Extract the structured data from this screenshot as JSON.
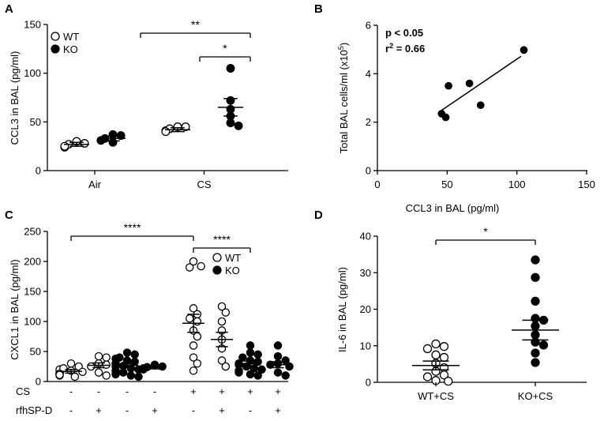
{
  "chart_data": [
    {
      "panel": "A",
      "type": "scatter",
      "ylabel": "CCL3 in BAL (pg/ml)",
      "ylim": [
        0,
        150
      ],
      "yticks": [
        "0",
        "50",
        "100",
        "150"
      ],
      "categories": [
        "Air",
        "CS"
      ],
      "legend": {
        "position": "top-left",
        "items": [
          {
            "name": "WT",
            "style": "open"
          },
          {
            "name": "KO",
            "style": "filled"
          }
        ]
      },
      "groups": [
        {
          "category": "Air",
          "genotype": "WT",
          "style": "open",
          "mean": 27,
          "sem": 2,
          "values": [
            24,
            27,
            28,
            30,
            25
          ]
        },
        {
          "category": "Air",
          "genotype": "KO",
          "style": "filled",
          "mean": 33,
          "sem": 2.5,
          "values": [
            31,
            37,
            36,
            29,
            33
          ]
        },
        {
          "category": "CS",
          "genotype": "WT",
          "style": "open",
          "mean": 42,
          "sem": 2,
          "values": [
            41,
            45,
            45,
            43,
            40
          ]
        },
        {
          "category": "CS",
          "genotype": "KO",
          "style": "filled",
          "mean": 65,
          "sem": 9,
          "values": [
            105,
            72,
            63,
            56,
            46,
            49
          ]
        }
      ],
      "significance": [
        {
          "label": "**",
          "from": 1,
          "to": 3
        },
        {
          "label": "*",
          "from": 2,
          "to": 3
        }
      ]
    },
    {
      "panel": "B",
      "type": "scatter",
      "xlabel": "CCL3 in BAL (pg/ml)",
      "ylabel_main": "Total BAL cells/ml (x10",
      "ylabel_sup": "5",
      "ylabel_end": ")",
      "xlim": [
        0,
        150
      ],
      "ylim": [
        0,
        6
      ],
      "xticks": [
        "0",
        "50",
        "100",
        "150"
      ],
      "yticks": [
        "0",
        "2",
        "4",
        "6"
      ],
      "points": [
        [
          46,
          2.35
        ],
        [
          49,
          2.2
        ],
        [
          51,
          3.5
        ],
        [
          66,
          3.6
        ],
        [
          74,
          2.7
        ],
        [
          105,
          4.98
        ]
      ],
      "fit": {
        "x1": 45,
        "y1": 2.45,
        "x2": 103,
        "y2": 4.72
      },
      "stat_p": "p < 0.05",
      "stat_r_base": "r",
      "stat_r_sup": "2",
      "stat_r_rest": " = 0.66"
    },
    {
      "panel": "C",
      "type": "scatter",
      "ylabel": "CXCL1 in BAL (pg/ml)",
      "ylim": [
        0,
        250
      ],
      "yticks": [
        "0",
        "50",
        "100",
        "150",
        "200",
        "250"
      ],
      "legend": {
        "position": "top-right",
        "items": [
          {
            "name": "WT",
            "style": "open"
          },
          {
            "name": "KO",
            "style": "filled"
          }
        ]
      },
      "row_labels": [
        "CS",
        "rfhSP-D"
      ],
      "cs_row": [
        "-",
        "-",
        "-",
        "-",
        "+",
        "+",
        "+",
        "+"
      ],
      "sp_row": [
        "-",
        "+",
        "-",
        "+",
        "-",
        "+",
        "-",
        "+"
      ],
      "groups": [
        {
          "style": "open",
          "mean": 17,
          "sem": 3,
          "values": [
            10,
            12,
            14,
            15,
            18,
            20,
            22,
            25,
            30,
            13,
            16,
            8,
            11
          ]
        },
        {
          "style": "open",
          "mean": 27,
          "sem": 4,
          "values": [
            42,
            40,
            30,
            28,
            25,
            15,
            10
          ]
        },
        {
          "style": "filled",
          "mean": 27,
          "sem": 3,
          "values": [
            45,
            48,
            40,
            35,
            30,
            28,
            25,
            22,
            20,
            18,
            15,
            12,
            10,
            8,
            30,
            26,
            33,
            38
          ]
        },
        {
          "style": "filled",
          "mean": 23,
          "sem": 2,
          "values": [
            28,
            25,
            22,
            20,
            24
          ]
        },
        {
          "style": "open",
          "mean": 97,
          "sem": 15,
          "values": [
            200,
            192,
            190,
            122,
            112,
            105,
            100,
            85,
            75,
            60,
            40,
            30,
            18
          ]
        },
        {
          "style": "open",
          "mean": 70,
          "sem": 12,
          "values": [
            125,
            115,
            100,
            85,
            70,
            55,
            35,
            25
          ]
        },
        {
          "style": "filled",
          "mean": 30,
          "sem": 4,
          "values": [
            60,
            48,
            45,
            40,
            35,
            30,
            28,
            25,
            22,
            20,
            18,
            15,
            12,
            10,
            33
          ]
        },
        {
          "style": "filled",
          "mean": 28,
          "sem": 5,
          "values": [
            60,
            42,
            35,
            30,
            28,
            25,
            15,
            10
          ]
        }
      ],
      "significance": [
        {
          "label": "****",
          "from": 0,
          "to": 4
        },
        {
          "label": "****",
          "from": 4,
          "to": 6
        }
      ]
    },
    {
      "panel": "D",
      "type": "scatter",
      "ylabel": "IL-6 in BAL (pg/ml)",
      "ylim": [
        0,
        40
      ],
      "yticks": [
        "0",
        "10",
        "20",
        "30",
        "40"
      ],
      "categories": [
        "WT+CS",
        "KO+CS"
      ],
      "groups": [
        {
          "style": "open",
          "mean": 4.6,
          "sem": 1.2,
          "values": [
            10.5,
            9.8,
            9.2,
            7.5,
            6.8,
            5.2,
            4.0,
            3.0,
            2.0,
            1.5,
            0.5,
            0.3
          ]
        },
        {
          "style": "filled",
          "mean": 14.3,
          "sem": 2.7,
          "values": [
            33.5,
            28.7,
            22.2,
            17.5,
            17.0,
            15.4,
            13.0,
            11.0,
            10.2,
            8.0,
            5.4
          ]
        }
      ],
      "significance": [
        {
          "label": "*",
          "from": 0,
          "to": 1
        }
      ]
    }
  ]
}
